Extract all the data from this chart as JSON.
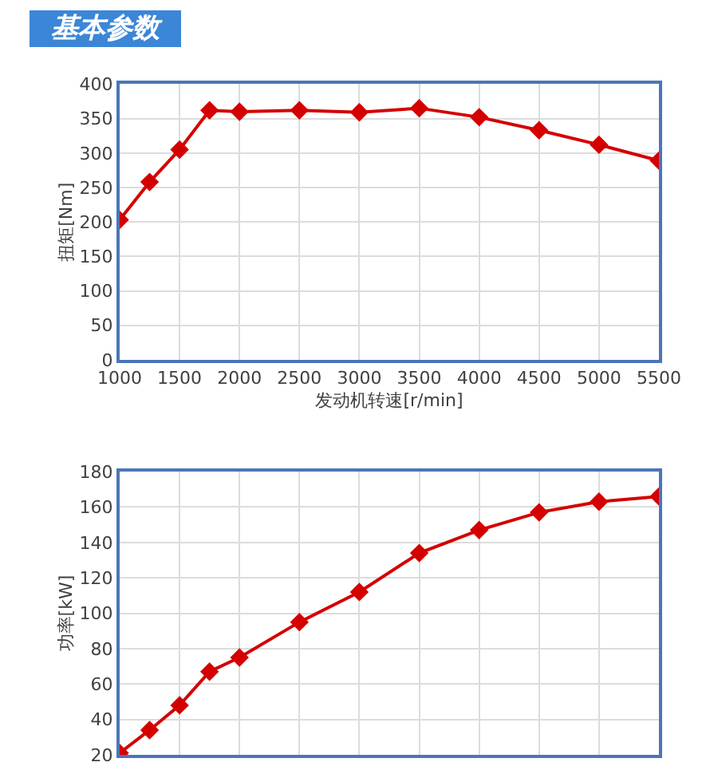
{
  "chart_data": [
    {
      "type": "line",
      "title": "基本参数",
      "xlabel": "发动机转速[r/min]",
      "ylabel": "扭矩[Nm]",
      "x": [
        1000,
        1250,
        1500,
        1750,
        2000,
        2500,
        3000,
        3500,
        4000,
        4500,
        5000,
        5500
      ],
      "series": [
        {
          "color": "#d40000",
          "values": [
            203,
            258,
            305,
            362,
            360,
            362,
            359,
            365,
            352,
            333,
            312,
            289
          ]
        }
      ],
      "xlim": [
        1000,
        5500
      ],
      "xticks": [
        1000,
        1500,
        2000,
        2500,
        3000,
        3500,
        4000,
        4500,
        5000,
        5500
      ],
      "ylim": [
        0,
        400
      ],
      "yticks": [
        0,
        50,
        100,
        150,
        200,
        250,
        300,
        350,
        400
      ],
      "grid": true,
      "marker": "diamond",
      "line_style": "solid"
    },
    {
      "type": "line",
      "ylabel": "功率[kW]",
      "x": [
        1000,
        1250,
        1500,
        1750,
        2000,
        2500,
        3000,
        3500,
        4000,
        4500,
        5000,
        5500
      ],
      "series": [
        {
          "color": "#d40000",
          "values": [
            21,
            34,
            48,
            67,
            75,
            95,
            112,
            134,
            147,
            157,
            163,
            166
          ]
        }
      ],
      "xlim": [
        1000,
        5500
      ],
      "xticks": [
        1000,
        1500,
        2000,
        2500,
        3000,
        3500,
        4000,
        4500,
        5000,
        5500
      ],
      "ylim": [
        20,
        180
      ],
      "yticks": [
        20,
        40,
        60,
        80,
        100,
        120,
        140,
        160,
        180
      ],
      "grid": true,
      "marker": "diamond",
      "line_style": "solid",
      "tick_labels": "y"
    }
  ]
}
